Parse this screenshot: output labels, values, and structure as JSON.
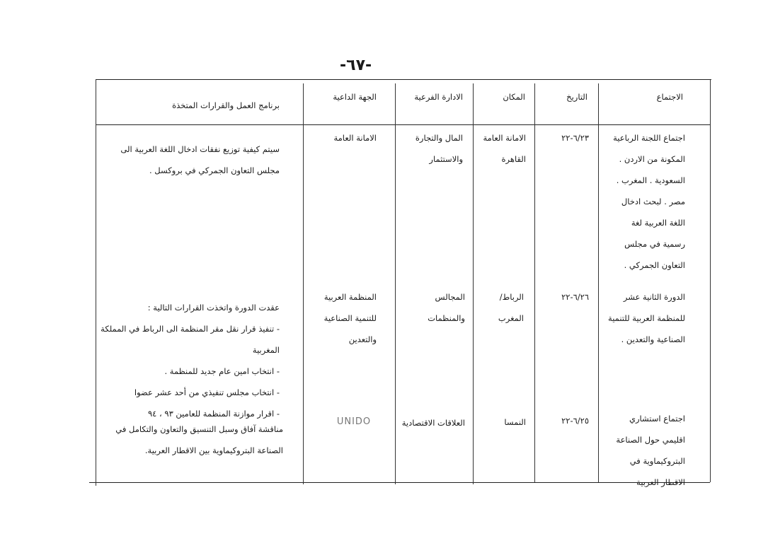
{
  "page_number": "-٦٧-",
  "headers": {
    "meeting": "الاجتماع",
    "date": "التاريخ",
    "place": "المكان",
    "department": "الادارة الفرعية",
    "inviting_party": "الجهة الداعية",
    "program": "برنامج العمل والقرارات المتخذة"
  },
  "rows": [
    {
      "meeting": "اجتماع اللجنة الرباعية المكونة من الاردن . السعودية . المغرب . مصر . لبحث ادخال اللغة العربية لغة رسمية في مجلس التعاون الجمركي .",
      "date": "٦/٢٣-٢٢",
      "place": "الامانة العامة القاهرة",
      "department": "المال والتجارة والاستثمار",
      "inviting_party": "الامانة العامة",
      "program_intro": "سيتم كيفية توزيع نفقات ادخال اللغة العربية الى مجلس التعاون الجمركي في بروكسل ."
    },
    {
      "meeting": "الدورة الثانية عشر للمنظمة العربية للتنمية الصناعية والتعدين .",
      "date": "٦/٢٦-٢٢",
      "place": "الرباط/ المغرب",
      "department": "المجالس والمنظمات",
      "inviting_party": "المنظمة العربية للتنمية الصناعية والتعدين",
      "program_intro": "عقدت الدورة واتخذت القرارات التالية :",
      "program_items": [
        "تنفيذ قرار نقل مقر المنظمة الى الرباط في المملكة المغربية",
        "انتخاب امين عام جديد للمنظمة .",
        "انتخاب مجلس تنفيذي من أحد عشر عضوا",
        "اقرار موازنة المنظمة للعامين ٩٣ ، ٩٤"
      ]
    },
    {
      "meeting": "اجتماع استشاري اقليمي حول الصناعة البتروكيماوية في الاقطار العربية",
      "date": "٦/٢٥-٢٢",
      "place": "النمسا",
      "department": "العلاقات الاقتصادية",
      "inviting_party": "UNIDO",
      "program_intro": "مناقشة آفاق وسبل التنسيق والتعاون والتكامل في الصناعة البتروكيماوية بين الاقطار العربية."
    }
  ]
}
